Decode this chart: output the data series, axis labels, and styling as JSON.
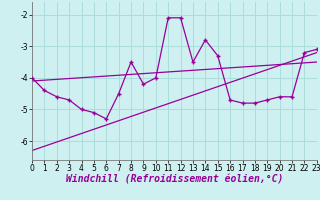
{
  "xlabel": "Windchill (Refroidissement éolien,°C)",
  "background_color": "#cff0f0",
  "grid_color": "#aadddd",
  "line_color": "#990099",
  "x_hours": [
    0,
    1,
    2,
    3,
    4,
    5,
    6,
    7,
    8,
    9,
    10,
    11,
    12,
    13,
    14,
    15,
    16,
    17,
    18,
    19,
    20,
    21,
    22,
    23
  ],
  "windchill": [
    -4.0,
    -4.4,
    -4.6,
    -4.7,
    -5.0,
    -5.1,
    -5.3,
    -4.5,
    -3.5,
    -4.2,
    -4.0,
    -2.1,
    -2.1,
    -3.5,
    -2.8,
    -3.3,
    -4.7,
    -4.8,
    -4.8,
    -4.7,
    -4.6,
    -4.6,
    -3.2,
    -3.1
  ],
  "trend1_x": [
    0,
    23
  ],
  "trend1_y": [
    -4.1,
    -3.5
  ],
  "trend2_x": [
    0,
    23
  ],
  "trend2_y": [
    -6.3,
    -3.2
  ],
  "ylim": [
    -6.6,
    -1.6
  ],
  "xlim": [
    0,
    23
  ],
  "yticks": [
    -6,
    -5,
    -4,
    -3,
    -2
  ],
  "xticks": [
    0,
    1,
    2,
    3,
    4,
    5,
    6,
    7,
    8,
    9,
    10,
    11,
    12,
    13,
    14,
    15,
    16,
    17,
    18,
    19,
    20,
    21,
    22,
    23
  ],
  "tick_fontsize": 5.5,
  "xlabel_fontsize": 7.0
}
